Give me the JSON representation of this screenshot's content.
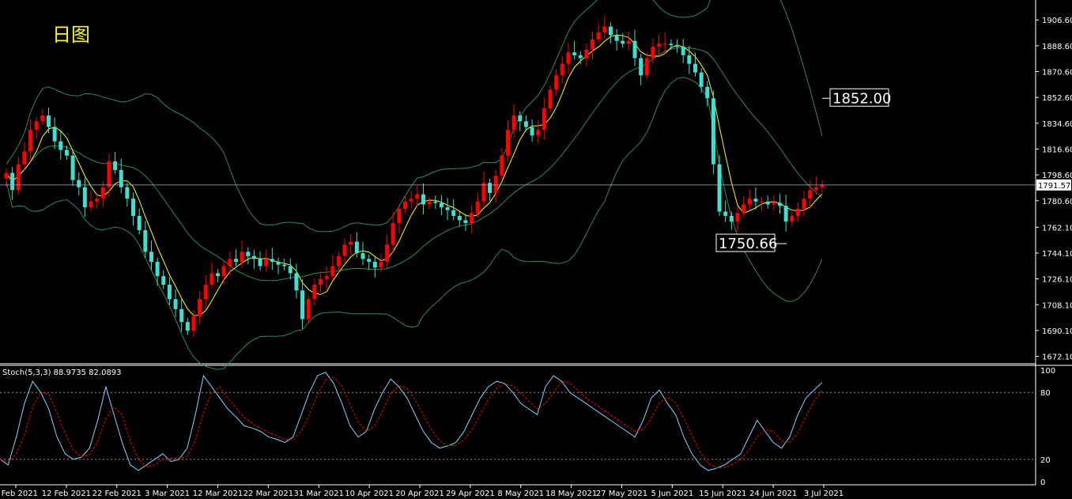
{
  "title": "日图",
  "price_axis": {
    "ticks": [
      "1906.60",
      "1888.60",
      "1870.60",
      "1852.60",
      "1834.60",
      "1816.60",
      "1798.60",
      "1780.60",
      "1762.10",
      "1744.10",
      "1726.10",
      "1708.10",
      "1690.10",
      "1672.10"
    ],
    "current_price": "1791.57"
  },
  "annotations": {
    "upper": "1852.00",
    "lower": "1750.66"
  },
  "stoch": {
    "label": "Stoch(5,3,3) 88.9735 82.0893",
    "ticks": [
      "100",
      "80",
      "20",
      "0"
    ]
  },
  "date_axis": {
    "labels": [
      "3 Feb 2021",
      "12 Feb 2021",
      "22 Feb 2021",
      "3 Mar 2021",
      "12 Mar 2021",
      "22 Mar 2021",
      "31 Mar 2021",
      "10 Apr 2021",
      "20 Apr 2021",
      "29 Apr 2021",
      "8 May 2021",
      "18 May 2021",
      "27 May 2021",
      "5 Jun 2021",
      "15 Jun 2021",
      "24 Jun 2021",
      "3 Jul 2021"
    ]
  },
  "colors": {
    "bull": "#ff0000",
    "bear": "#40e0d0",
    "band": "#2e8b57",
    "ma": "#ffff00",
    "grid": "#ffffff",
    "signal": "#ff0000",
    "kline": "#7fd4ff"
  },
  "chart_data": {
    "type": "candlestick",
    "closes": [
      1800,
      1788,
      1806,
      1815,
      1830,
      1836,
      1840,
      1832,
      1822,
      1816,
      1812,
      1795,
      1790,
      1776,
      1780,
      1782,
      1790,
      1808,
      1802,
      1790,
      1782,
      1770,
      1760,
      1745,
      1738,
      1728,
      1722,
      1712,
      1705,
      1696,
      1690,
      1700,
      1712,
      1722,
      1730,
      1728,
      1735,
      1740,
      1738,
      1745,
      1742,
      1740,
      1735,
      1740,
      1738,
      1736,
      1735,
      1730,
      1718,
      1698,
      1712,
      1722,
      1726,
      1728,
      1735,
      1742,
      1750,
      1752,
      1744,
      1740,
      1738,
      1734,
      1738,
      1750,
      1765,
      1775,
      1780,
      1782,
      1785,
      1778,
      1780,
      1779,
      1776,
      1774,
      1770,
      1767,
      1765,
      1772,
      1780,
      1793,
      1786,
      1798,
      1812,
      1830,
      1840,
      1836,
      1832,
      1826,
      1830,
      1845,
      1858,
      1868,
      1876,
      1884,
      1882,
      1880,
      1886,
      1893,
      1898,
      1902,
      1896,
      1892,
      1890,
      1892,
      1880,
      1868,
      1880,
      1888,
      1890,
      1890,
      1889,
      1888,
      1882,
      1876,
      1870,
      1860,
      1852,
      1806,
      1773,
      1770,
      1766,
      1772,
      1778,
      1782,
      1780,
      1780,
      1778,
      1779,
      1777,
      1766,
      1770,
      1775,
      1782,
      1788,
      1790,
      1791.57
    ],
    "stoch_k": [
      20,
      15,
      40,
      70,
      90,
      80,
      65,
      40,
      25,
      20,
      22,
      30,
      55,
      85,
      60,
      35,
      15,
      10,
      15,
      20,
      25,
      18,
      20,
      30,
      60,
      95,
      85,
      75,
      65,
      58,
      50,
      48,
      45,
      40,
      38,
      35,
      40,
      60,
      80,
      95,
      98,
      88,
      70,
      50,
      40,
      45,
      65,
      80,
      92,
      85,
      75,
      60,
      45,
      35,
      30,
      32,
      35,
      45,
      60,
      75,
      85,
      90,
      88,
      80,
      70,
      65,
      60,
      85,
      95,
      90,
      80,
      75,
      70,
      65,
      60,
      55,
      50,
      45,
      40,
      55,
      75,
      82,
      70,
      60,
      40,
      25,
      15,
      10,
      12,
      15,
      20,
      25,
      40,
      55,
      45,
      35,
      30,
      40,
      60,
      75,
      82,
      89
    ]
  }
}
